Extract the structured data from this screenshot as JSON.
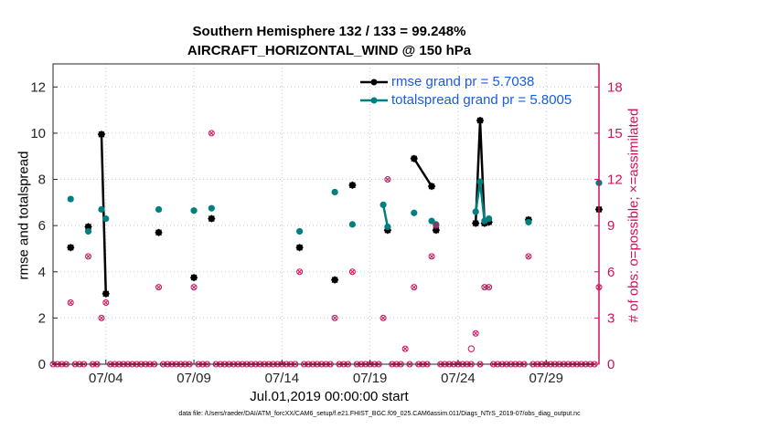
{
  "chart_data": {
    "type": "scatter",
    "title": "Southern Hemisphere 132 / 133 = 99.248%",
    "subtitle": "AIRCRAFT_HORIZONTAL_WIND @ 150 hPa",
    "xlabel": "Jul.01,2019 00:00:00 start",
    "ylabel": "rmse and totalspread",
    "ylabel_right": "# of obs: o=possible; ×=assimilated",
    "footer": "data file: /Users/raeder/DAI/ATM_forcXX/CAM6_setup/f.e21.FHIST_BGC.f09_025.CAM6assim.011/Diags_NTrS_2019-07/obs_diag_output.nc",
    "x_ticks": [
      "07/04",
      "07/09",
      "07/14",
      "07/19",
      "07/24",
      "07/29"
    ],
    "x_tick_days": [
      4,
      9,
      14,
      19,
      24,
      29
    ],
    "xlim": [
      1,
      32
    ],
    "y_ticks": [
      0,
      2,
      4,
      6,
      8,
      10,
      12
    ],
    "ylim": [
      0,
      13
    ],
    "y2_ticks": [
      0,
      3,
      6,
      9,
      12,
      15,
      18
    ],
    "y2lim": [
      0,
      19.5
    ],
    "colors": {
      "rmse": "#000000",
      "spread": "#007f7f",
      "obs": "#d0105a",
      "legend_text": "#1a5ce0"
    },
    "series": [
      {
        "name": "rmse grand pr = 5.7038",
        "key": "rmse",
        "points": [
          [
            2.0,
            5.05
          ],
          [
            3.0,
            5.95
          ],
          [
            3.75,
            9.95
          ],
          [
            4.0,
            3.05
          ],
          [
            7.0,
            5.7
          ],
          [
            9.0,
            3.75
          ],
          [
            10.0,
            6.3
          ],
          [
            15.0,
            5.05
          ],
          [
            17.0,
            3.65
          ],
          [
            18.0,
            7.75
          ],
          [
            20.0,
            5.8
          ],
          [
            21.5,
            8.9
          ],
          [
            22.5,
            7.7
          ],
          [
            22.75,
            5.8
          ],
          [
            25.0,
            6.1
          ],
          [
            25.25,
            10.55
          ],
          [
            25.5,
            6.1
          ],
          [
            25.75,
            6.15
          ],
          [
            28.0,
            6.25
          ],
          [
            32.0,
            6.7
          ]
        ],
        "connected_segments": [
          [
            2,
            3
          ],
          [
            11,
            12
          ],
          [
            14,
            15,
            16,
            17
          ]
        ]
      },
      {
        "name": "totalspread grand pr = 5.8005",
        "key": "spread",
        "points": [
          [
            2.0,
            7.15
          ],
          [
            3.0,
            5.75
          ],
          [
            3.75,
            6.7
          ],
          [
            4.0,
            6.3
          ],
          [
            7.0,
            6.7
          ],
          [
            9.0,
            6.65
          ],
          [
            10.0,
            6.75
          ],
          [
            15.0,
            5.75
          ],
          [
            17.0,
            7.45
          ],
          [
            18.0,
            6.05
          ],
          [
            19.75,
            6.9
          ],
          [
            20.0,
            5.95
          ],
          [
            21.5,
            6.55
          ],
          [
            22.5,
            6.2
          ],
          [
            22.75,
            6.05
          ],
          [
            25.0,
            6.6
          ],
          [
            25.25,
            7.9
          ],
          [
            25.5,
            6.2
          ],
          [
            25.75,
            6.3
          ],
          [
            28.0,
            6.15
          ],
          [
            32.0,
            7.85
          ]
        ],
        "connected_segments": [
          [
            10,
            11
          ],
          [
            13,
            14
          ],
          [
            15,
            16,
            17,
            18
          ]
        ]
      }
    ],
    "obs_assimilated": [
      [
        2.0,
        4
      ],
      [
        3.0,
        7
      ],
      [
        3.75,
        3
      ],
      [
        4.0,
        4
      ],
      [
        7.0,
        5
      ],
      [
        9.0,
        5
      ],
      [
        10.0,
        15
      ],
      [
        15.0,
        6
      ],
      [
        17.0,
        3
      ],
      [
        18.0,
        6
      ],
      [
        19.75,
        3
      ],
      [
        20.0,
        12
      ],
      [
        21.0,
        1
      ],
      [
        21.5,
        5
      ],
      [
        22.5,
        7
      ],
      [
        22.75,
        9
      ],
      [
        25.0,
        2
      ],
      [
        25.5,
        5
      ],
      [
        25.75,
        5
      ],
      [
        28.0,
        7
      ],
      [
        32.0,
        5
      ]
    ],
    "obs_possible": [
      [
        24.75,
        1
      ]
    ]
  }
}
